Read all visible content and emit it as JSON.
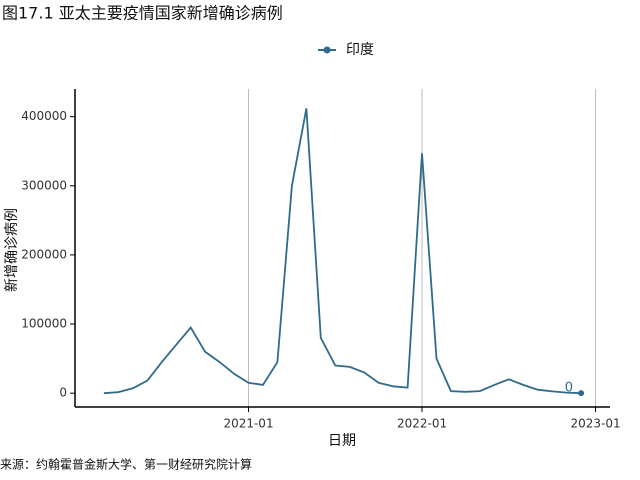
{
  "chart_data": {
    "type": "line",
    "title": "图17.1 亚太主要疫情国家新增确诊病例",
    "source": "来源：约翰霍普金斯大学、第一财经研究院计算",
    "x_label": "日期",
    "y_label": "新增确诊病例",
    "x": [
      "2020-03",
      "2020-04",
      "2020-05",
      "2020-06",
      "2020-07",
      "2020-08",
      "2020-09",
      "2020-10",
      "2020-11",
      "2020-12",
      "2021-01",
      "2021-02",
      "2021-03",
      "2021-04",
      "2021-05",
      "2021-06",
      "2021-07",
      "2021-08",
      "2021-09",
      "2021-10",
      "2021-11",
      "2021-12",
      "2022-01",
      "2022-02",
      "2022-03",
      "2022-04",
      "2022-05",
      "2022-06",
      "2022-07",
      "2022-08",
      "2022-09",
      "2022-10",
      "2022-11",
      "2022-12"
    ],
    "series": [
      {
        "name": "印度",
        "color": "#2f6b8a",
        "values": [
          0,
          1500,
          7000,
          18000,
          45000,
          70000,
          95000,
          60000,
          45000,
          28000,
          15000,
          12000,
          45000,
          300000,
          412000,
          80000,
          40000,
          38000,
          30000,
          15000,
          10000,
          8000,
          347000,
          50000,
          3000,
          2000,
          3000,
          12000,
          20000,
          12000,
          5000,
          2500,
          800,
          0
        ]
      }
    ],
    "xlim": [
      "2020-01",
      "2023-02"
    ],
    "xticks": [
      "2021-01",
      "2022-01",
      "2023-01"
    ],
    "ylim": [
      -20000,
      440000
    ],
    "yticks": [
      0,
      100000,
      200000,
      300000,
      400000
    ],
    "grid": true,
    "legend": "top"
  }
}
